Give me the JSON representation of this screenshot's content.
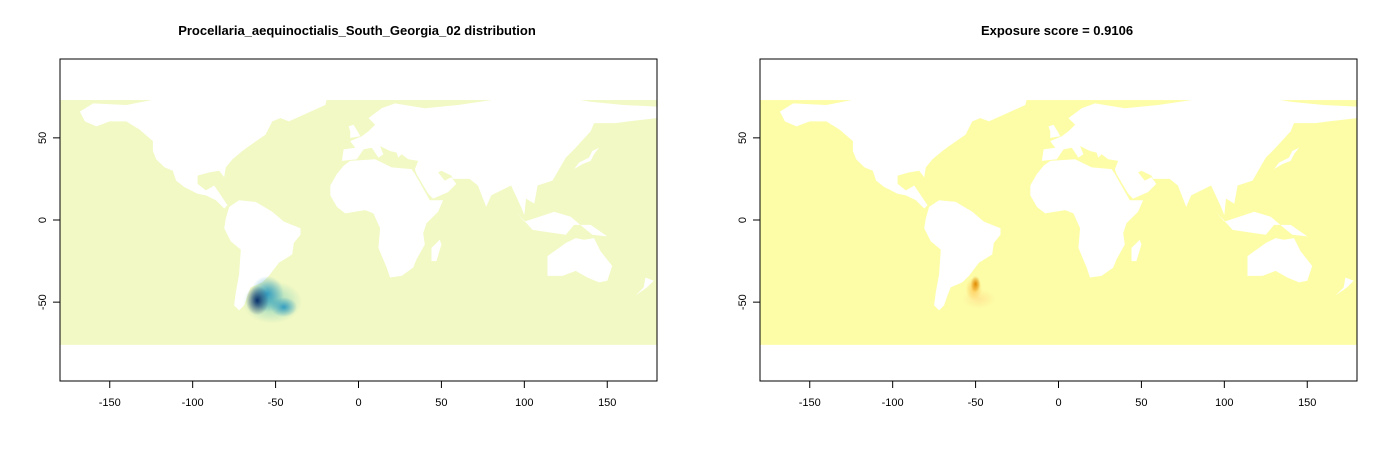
{
  "colors": {
    "panel1_ocean": "#f2f9c4",
    "panel2_ocean": "#fdfda7",
    "land": "#ffffff",
    "hotspot1_core": "#08306b",
    "hotspot1_mid": "#1d91c0",
    "hotspot1_outer": "#7fcdbb",
    "hotspot2_core": "#e08a00",
    "hotspot2_mid": "#fec44f",
    "hotspot2_outer": "#fee391"
  },
  "plots": [
    {
      "title": "Procellaria_aequinoctialis_South_Georgia_02 distribution",
      "xlim": [
        -180,
        180
      ],
      "ylim": [
        -98,
        98
      ],
      "x_ticks": [
        -150,
        -100,
        -50,
        0,
        50,
        100,
        150
      ],
      "y_ticks": [
        -50,
        0,
        50
      ],
      "x_tick_labels": [
        "-150",
        "-100",
        "-50",
        "0",
        "50",
        "100",
        "150"
      ],
      "y_tick_labels": [
        "-50",
        "0",
        "50"
      ],
      "data_extent_lat": [
        -76,
        73
      ],
      "ocean_color": "#f2f9c4",
      "hotspots": [
        {
          "lon": -61,
          "lat": -49,
          "rx": 7,
          "ry": 9,
          "level": "core"
        },
        {
          "lon": -55,
          "lat": -45,
          "rx": 10,
          "ry": 11,
          "level": "mid"
        },
        {
          "lon": -45,
          "lat": -53,
          "rx": 8,
          "ry": 6,
          "level": "mid"
        },
        {
          "lon": -52,
          "lat": -50,
          "rx": 18,
          "ry": 13,
          "level": "outer"
        }
      ],
      "scheme": "blue"
    },
    {
      "title": "Exposure score = 0.9106",
      "xlim": [
        -180,
        180
      ],
      "ylim": [
        -98,
        98
      ],
      "x_ticks": [
        -150,
        -100,
        -50,
        0,
        50,
        100,
        150
      ],
      "y_ticks": [
        -50,
        0,
        50
      ],
      "x_tick_labels": [
        "-150",
        "-100",
        "-50",
        "0",
        "50",
        "100",
        "150"
      ],
      "y_tick_labels": [
        "-50",
        "0",
        "50"
      ],
      "data_extent_lat": [
        -76,
        73
      ],
      "ocean_color": "#fdfda7",
      "hotspots": [
        {
          "lon": -50,
          "lat": -39,
          "rx": 3,
          "ry": 5,
          "level": "core"
        },
        {
          "lon": -51,
          "lat": -42,
          "rx": 5,
          "ry": 7,
          "level": "mid"
        },
        {
          "lon": -48,
          "lat": -48,
          "rx": 10,
          "ry": 6,
          "level": "outer"
        }
      ],
      "scheme": "orange"
    }
  ]
}
